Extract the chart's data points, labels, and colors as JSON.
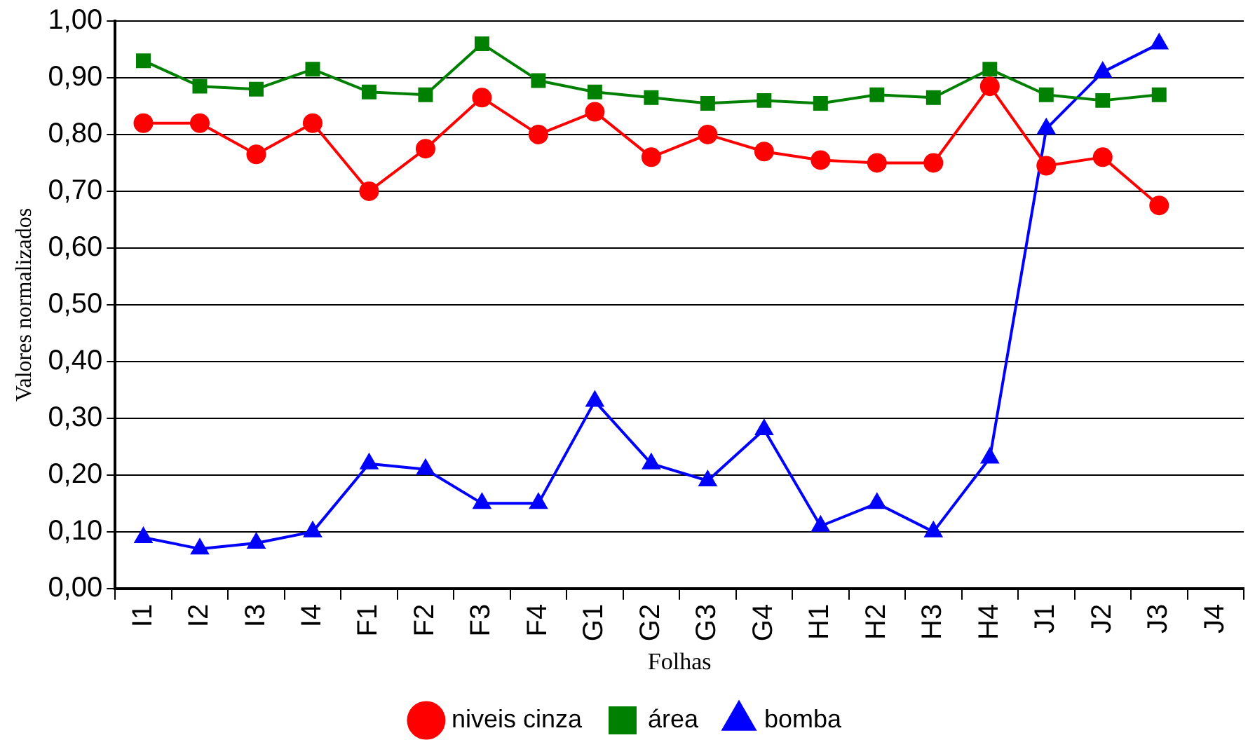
{
  "chart_data": {
    "type": "line",
    "xlabel": "Folhas",
    "ylabel": "Valores normalizados",
    "categories": [
      "I1",
      "I2",
      "I3",
      "I4",
      "F1",
      "F2",
      "F3",
      "F4",
      "G1",
      "G2",
      "G3",
      "G4",
      "H1",
      "H2",
      "H3",
      "H4",
      "J1",
      "J2",
      "J3",
      "J4"
    ],
    "series": [
      {
        "name": "niveis cinza",
        "color": "#ff0000",
        "marker": "circle",
        "values": [
          0.82,
          0.82,
          0.765,
          0.82,
          0.7,
          0.775,
          0.865,
          0.8,
          0.84,
          0.76,
          0.8,
          0.77,
          0.755,
          0.75,
          0.75,
          0.885,
          0.745,
          0.76,
          0.675,
          null
        ]
      },
      {
        "name": "área",
        "color": "#008000",
        "marker": "square",
        "values": [
          0.93,
          0.885,
          0.88,
          0.915,
          0.875,
          0.87,
          0.96,
          0.895,
          0.875,
          0.865,
          0.855,
          0.86,
          0.855,
          0.87,
          0.865,
          0.915,
          0.87,
          0.86,
          0.87,
          null
        ]
      },
      {
        "name": "bomba",
        "color": "#0000ff",
        "marker": "triangle",
        "values": [
          0.09,
          0.07,
          0.08,
          0.1,
          0.22,
          0.21,
          0.15,
          0.15,
          0.33,
          0.22,
          0.19,
          0.28,
          0.11,
          0.15,
          0.1,
          0.23,
          0.81,
          0.91,
          0.96,
          null
        ]
      }
    ],
    "ylim": [
      0,
      1
    ],
    "yticks": [
      {
        "value": 0,
        "label": "0,00"
      },
      {
        "value": 0.1,
        "label": "0,10"
      },
      {
        "value": 0.2,
        "label": "0,20"
      },
      {
        "value": 0.3,
        "label": "0,30"
      },
      {
        "value": 0.4,
        "label": "0,40"
      },
      {
        "value": 0.5,
        "label": "0,50"
      },
      {
        "value": 0.6,
        "label": "0,60"
      },
      {
        "value": 0.7,
        "label": "0,70"
      },
      {
        "value": 0.8,
        "label": "0,80"
      },
      {
        "value": 0.9,
        "label": "0,90"
      },
      {
        "value": 1,
        "label": "1,00"
      }
    ],
    "grid": "y",
    "legend": "bottom",
    "line_style": "solid"
  }
}
